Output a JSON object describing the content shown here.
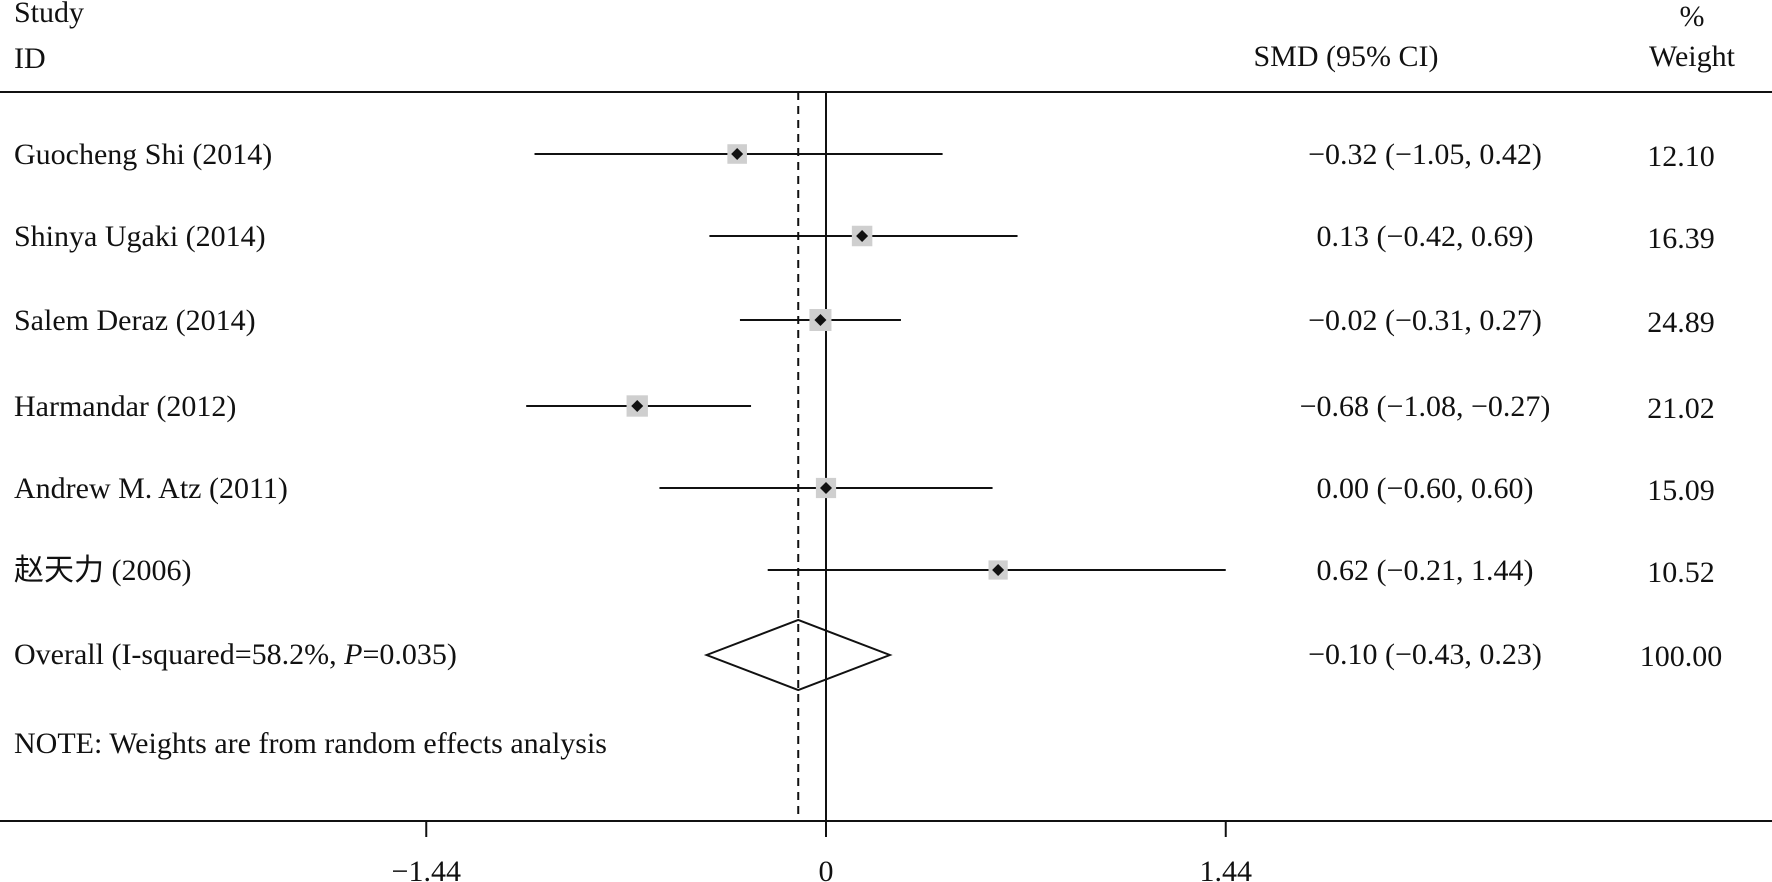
{
  "header": {
    "study": "Study",
    "id": "ID",
    "effect": "SMD (95% CI)",
    "pct": "%",
    "weight": "Weight"
  },
  "chart_data": {
    "type": "forest",
    "measure": "SMD (95% CI)",
    "studies": [
      {
        "label": "Guocheng Shi (2014)",
        "smd": -0.32,
        "ci": [
          -1.05,
          0.42
        ],
        "ci_text": "−0.32 (−1.05, 0.42)",
        "weight": 12.1,
        "weight_text": "12.10"
      },
      {
        "label": "Shinya Ugaki (2014)",
        "smd": 0.13,
        "ci": [
          -0.42,
          0.69
        ],
        "ci_text": "0.13 (−0.42, 0.69)",
        "weight": 16.39,
        "weight_text": "16.39"
      },
      {
        "label": "Salem Deraz (2014)",
        "smd": -0.02,
        "ci": [
          -0.31,
          0.27
        ],
        "ci_text": "−0.02 (−0.31, 0.27)",
        "weight": 24.89,
        "weight_text": "24.89"
      },
      {
        "label": "Harmandar (2012)",
        "smd": -0.68,
        "ci": [
          -1.08,
          -0.27
        ],
        "ci_text": "−0.68 (−1.08, −0.27)",
        "weight": 21.02,
        "weight_text": "21.02"
      },
      {
        "label": "Andrew M. Atz (2011)",
        "smd": 0.0,
        "ci": [
          -0.6,
          0.6
        ],
        "ci_text": "0.00 (−0.60, 0.60)",
        "weight": 15.09,
        "weight_text": "15.09"
      },
      {
        "label": "赵天力 (2006)",
        "smd": 0.62,
        "ci": [
          -0.21,
          1.44
        ],
        "ci_text": "0.62 (−0.21, 1.44)",
        "weight": 10.52,
        "weight_text": "10.52"
      }
    ],
    "overall": {
      "label_prefix": "Overall (I-squared=58.2%, ",
      "label_p": "P",
      "label_suffix": "=0.035)",
      "smd": -0.1,
      "ci": [
        -0.43,
        0.23
      ],
      "ci_text": "−0.10 (−0.43, 0.23)",
      "weight": 100.0,
      "weight_text": "100.00"
    },
    "note": "NOTE: Weights are from random effects analysis",
    "x_ticks": [
      {
        "value": -1.44,
        "label": "−1.44"
      },
      {
        "value": 0,
        "label": "0"
      },
      {
        "value": 1.44,
        "label": "1.44"
      }
    ],
    "xlim": [
      -1.44,
      1.44
    ],
    "null_line": 0,
    "overall_line": -0.1,
    "colors": {
      "box": "#cfcfcf",
      "line": "#111111",
      "point": "#111111"
    }
  }
}
